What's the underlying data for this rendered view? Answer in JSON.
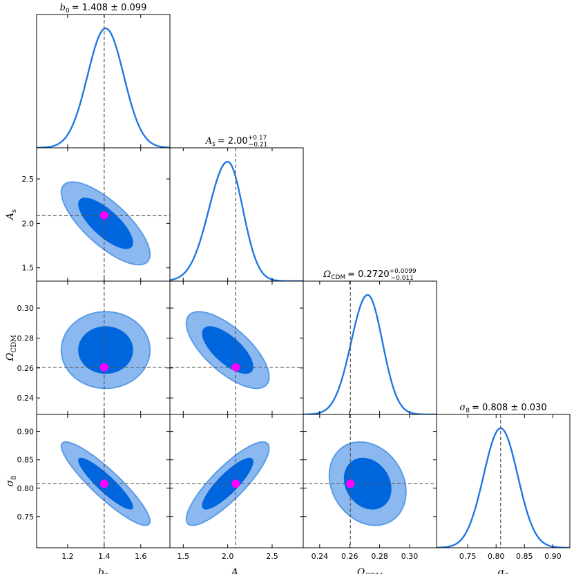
{
  "chart_data": {
    "type": "corner",
    "parameters": [
      {
        "id": "b0",
        "label_main": "b",
        "label_sub": "0",
        "title": "= 1.408 ± 0.099",
        "mean": 1.408,
        "sigma_lo": 0.099,
        "sigma_hi": 0.099,
        "truth": 1.4,
        "range": [
          1.03,
          1.76
        ],
        "ticks": [
          1.2,
          1.4,
          1.6
        ],
        "tick_labels": [
          "1.2",
          "1.4",
          "1.6"
        ]
      },
      {
        "id": "As",
        "label_main": "A",
        "label_sub": "s",
        "title": "= 2.00",
        "title_sup": "+0.17",
        "title_sub": "−0.21",
        "mean": 2.0,
        "sigma_lo": 0.21,
        "sigma_hi": 0.17,
        "truth": 2.09,
        "range": [
          1.35,
          2.85
        ],
        "ticks": [
          1.5,
          2.0,
          2.5
        ],
        "tick_labels": [
          "1.5",
          "2.0",
          "2.5"
        ]
      },
      {
        "id": "Om",
        "label_main": "Ω",
        "label_sub": "CDM",
        "title": "= 0.2720",
        "title_sup": "+0.0099",
        "title_sub": "−0.011",
        "mean": 0.272,
        "sigma_lo": 0.011,
        "sigma_hi": 0.0099,
        "truth": 0.2605,
        "range": [
          0.229,
          0.318
        ],
        "ticks": [
          0.24,
          0.26,
          0.28,
          0.3
        ],
        "tick_labels": [
          "0.24",
          "0.26",
          "0.28",
          "0.30"
        ]
      },
      {
        "id": "s8",
        "label_main": "σ",
        "label_sub": "8",
        "title": "= 0.808 ± 0.030",
        "mean": 0.808,
        "sigma_lo": 0.03,
        "sigma_hi": 0.03,
        "truth": 0.808,
        "range": [
          0.695,
          0.93
        ],
        "ticks": [
          0.75,
          0.8,
          0.85,
          0.9
        ],
        "tick_labels": [
          "0.75",
          "0.80",
          "0.85",
          "0.90"
        ]
      }
    ],
    "correlations": {
      "1-0": -0.75,
      "2-0": 0.0,
      "2-1": -0.7,
      "3-0": -0.9,
      "3-1": 0.85,
      "3-2": -0.2
    },
    "contour_levels": [
      "1σ (68%)",
      "2σ (95%)"
    ],
    "truth_marker_color": "#ff00ff",
    "colors": {
      "line": "#1f77e5",
      "inner": "#0066dd",
      "outer": "#8cb8f0",
      "outer_edge": "#5a9ce8",
      "truth_line": "#555555"
    }
  }
}
